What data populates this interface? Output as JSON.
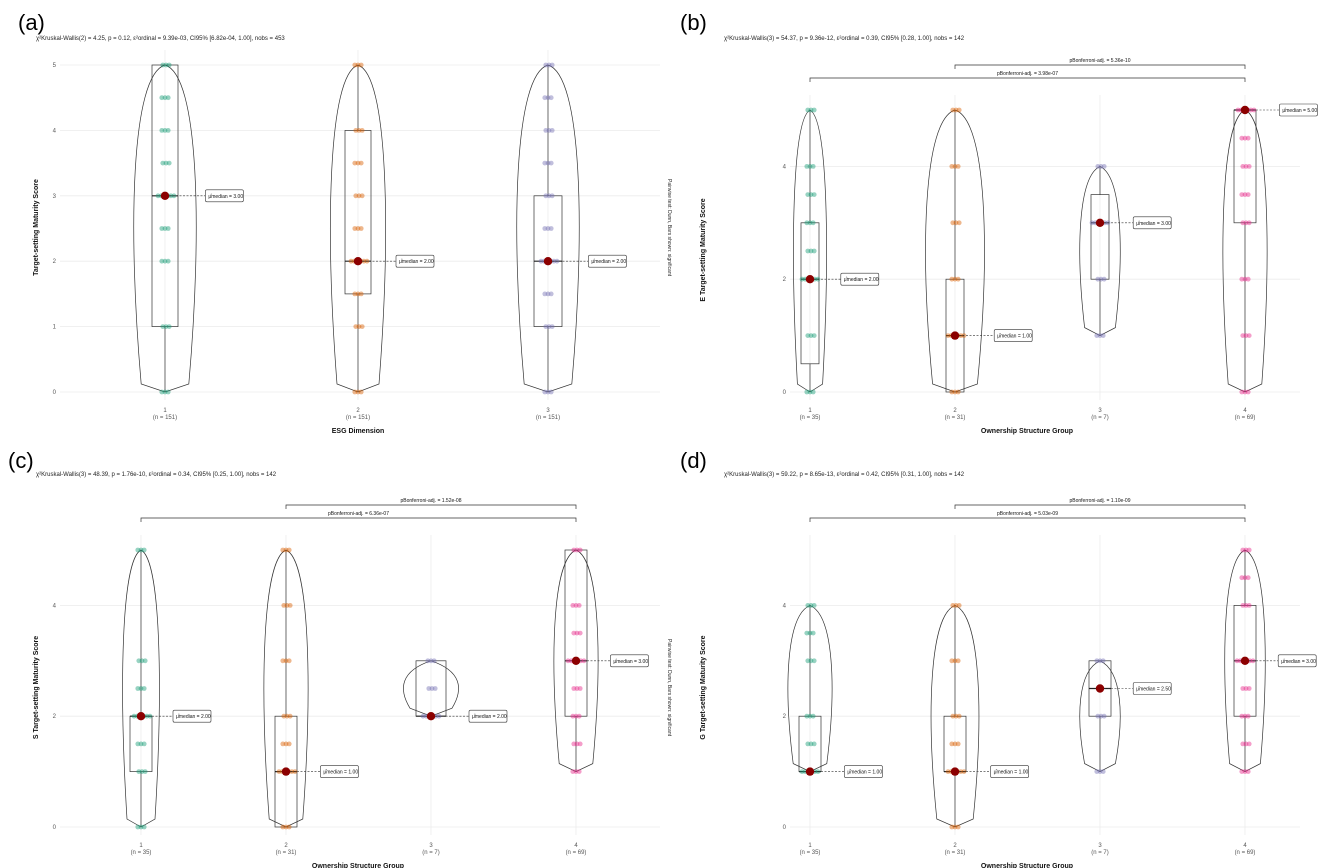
{
  "chart_data": [
    {
      "panel": "(a)",
      "type": "violin",
      "subtitle": "χ²Kruskal-Wallis(2) = 4.25, p = 0.12, ε²ordinal = 9.39e-03, CI95% [6.82e-04, 1.00], nobs = 453",
      "xlabel": "ESG Dimension",
      "ylabel": "Target-setting Maturity Score",
      "ylim": [
        0,
        5
      ],
      "yticks": [
        "0",
        "1",
        "2",
        "3",
        "4",
        "5"
      ],
      "categories": [
        "1",
        "2",
        "3"
      ],
      "counts": [
        "(n = 151)",
        "(n = 151)",
        "(n = 151)"
      ],
      "colors": [
        "#1b9e77",
        "#d95f02",
        "#7570b3"
      ],
      "medians": [
        3,
        2,
        2
      ],
      "median_labels": [
        "μ̂median = 3.00",
        "μ̂median = 2.00",
        "μ̂median = 2.00"
      ],
      "box": [
        [
          1,
          3,
          5
        ],
        [
          1.5,
          2,
          4
        ],
        [
          1,
          2,
          3
        ]
      ],
      "points": [
        [
          0,
          1,
          2,
          3,
          4,
          5,
          2.5,
          3.5,
          4.5
        ],
        [
          0,
          1,
          1.5,
          2,
          2.5,
          3,
          3.5,
          4,
          5
        ],
        [
          0,
          1,
          1.5,
          2,
          2.5,
          3,
          3.5,
          4,
          4.5,
          5
        ]
      ],
      "caption": "Pairwise test: Dunn, Bars shown: significant",
      "pairwise": []
    },
    {
      "panel": "(b)",
      "type": "violin",
      "subtitle": "χ²Kruskal-Wallis(3) = 54.37, p = 9.36e-12, ε²ordinal = 0.39, CI95% [0.28, 1.00], nobs = 142",
      "xlabel": "Ownership Structure Group",
      "ylabel": "E Target-setting Maturity Score",
      "ylim": [
        0,
        5
      ],
      "yticks": [
        "0",
        "2",
        "4"
      ],
      "categories": [
        "1",
        "2",
        "3",
        "4"
      ],
      "counts": [
        "(n = 35)",
        "(n = 31)",
        "(n = 7)",
        "(n = 69)"
      ],
      "colors": [
        "#1b9e77",
        "#d95f02",
        "#7570b3",
        "#e7298a"
      ],
      "medians": [
        2,
        1,
        3,
        5
      ],
      "median_labels": [
        "μ̂median = 2.00",
        "μ̂median = 1.00",
        "μ̂median = 3.00",
        "μ̂median = 5.00"
      ],
      "box": [
        [
          0.5,
          2,
          3
        ],
        [
          0,
          1,
          2
        ],
        [
          2,
          3,
          3.5
        ],
        [
          3,
          5,
          5
        ]
      ],
      "points": [
        [
          0,
          1,
          2,
          2.5,
          3,
          3.5,
          4,
          5
        ],
        [
          0,
          1,
          2,
          3,
          4,
          5
        ],
        [
          1,
          2,
          3,
          4
        ],
        [
          0,
          1,
          2,
          3,
          3.5,
          4,
          4.5,
          5
        ]
      ],
      "pairwise": [
        {
          "label": "pBonferroni-adj. = 5.36e-10",
          "from": "2",
          "to": "4"
        },
        {
          "label": "pBonferroni-adj. = 3.98e-07",
          "from": "1",
          "to": "4"
        }
      ]
    },
    {
      "panel": "(c)",
      "type": "violin",
      "subtitle": "χ²Kruskal-Wallis(3) = 48.39, p = 1.76e-10, ε²ordinal = 0.34, CI95% [0.25, 1.00], nobs = 142",
      "xlabel": "Ownership Structure Group",
      "ylabel": "S Target-setting Maturity Score",
      "ylim": [
        0,
        5
      ],
      "yticks": [
        "0",
        "2",
        "4"
      ],
      "categories": [
        "1",
        "2",
        "3",
        "4"
      ],
      "counts": [
        "(n = 35)",
        "(n = 31)",
        "(n = 7)",
        "(n = 69)"
      ],
      "colors": [
        "#1b9e77",
        "#d95f02",
        "#7570b3",
        "#e7298a"
      ],
      "medians": [
        2,
        1,
        2,
        3
      ],
      "median_labels": [
        "μ̂median = 2.00",
        "μ̂median = 1.00",
        "μ̂median = 2.00",
        "μ̂median = 3.00"
      ],
      "box": [
        [
          1,
          2,
          2
        ],
        [
          0,
          1,
          2
        ],
        [
          2,
          2,
          3
        ],
        [
          2,
          3,
          5
        ]
      ],
      "points": [
        [
          0,
          1,
          1.5,
          2,
          2.5,
          3,
          5
        ],
        [
          0,
          1,
          1.5,
          2,
          3,
          4,
          5
        ],
        [
          2,
          2.5,
          3
        ],
        [
          1,
          1.5,
          2,
          2.5,
          3,
          3.5,
          4,
          5
        ]
      ],
      "caption": "Pairwise test: Dunn, Bars shown: significant",
      "pairwise": [
        {
          "label": "pBonferroni-adj. = 1.52e-08",
          "from": "2",
          "to": "4"
        },
        {
          "label": "pBonferroni-adj. = 6.36e-07",
          "from": "1",
          "to": "4"
        }
      ]
    },
    {
      "panel": "(d)",
      "type": "violin",
      "subtitle": "χ²Kruskal-Wallis(3) = 59.22, p = 8.65e-13, ε²ordinal = 0.42, CI95% [0.31, 1.00], nobs = 142",
      "xlabel": "Ownership Structure Group",
      "ylabel": "G Target-setting Maturity Score",
      "ylim": [
        0,
        5
      ],
      "yticks": [
        "0",
        "2",
        "4"
      ],
      "categories": [
        "1",
        "2",
        "3",
        "4"
      ],
      "counts": [
        "(n = 35)",
        "(n = 31)",
        "(n = 7)",
        "(n = 69)"
      ],
      "colors": [
        "#1b9e77",
        "#d95f02",
        "#7570b3",
        "#e7298a"
      ],
      "medians": [
        1,
        1,
        2.5,
        3
      ],
      "median_labels": [
        "μ̂median = 1.00",
        "μ̂median = 1.00",
        "μ̂median = 2.50",
        "μ̂median = 3.00"
      ],
      "box": [
        [
          1,
          1,
          2
        ],
        [
          1,
          1,
          2
        ],
        [
          2,
          2.5,
          3
        ],
        [
          2,
          3,
          4
        ]
      ],
      "points": [
        [
          1,
          1.5,
          2,
          3,
          3.5,
          4
        ],
        [
          0,
          1,
          1.5,
          2,
          3,
          4
        ],
        [
          1,
          2,
          3
        ],
        [
          1,
          1.5,
          2,
          2.5,
          3,
          4,
          4.5,
          5
        ]
      ],
      "pairwise": [
        {
          "label": "pBonferroni-adj. = 1.10e-09",
          "from": "2",
          "to": "4"
        },
        {
          "label": "pBonferroni-adj. = 5.03e-09",
          "from": "1",
          "to": "4"
        }
      ]
    }
  ]
}
